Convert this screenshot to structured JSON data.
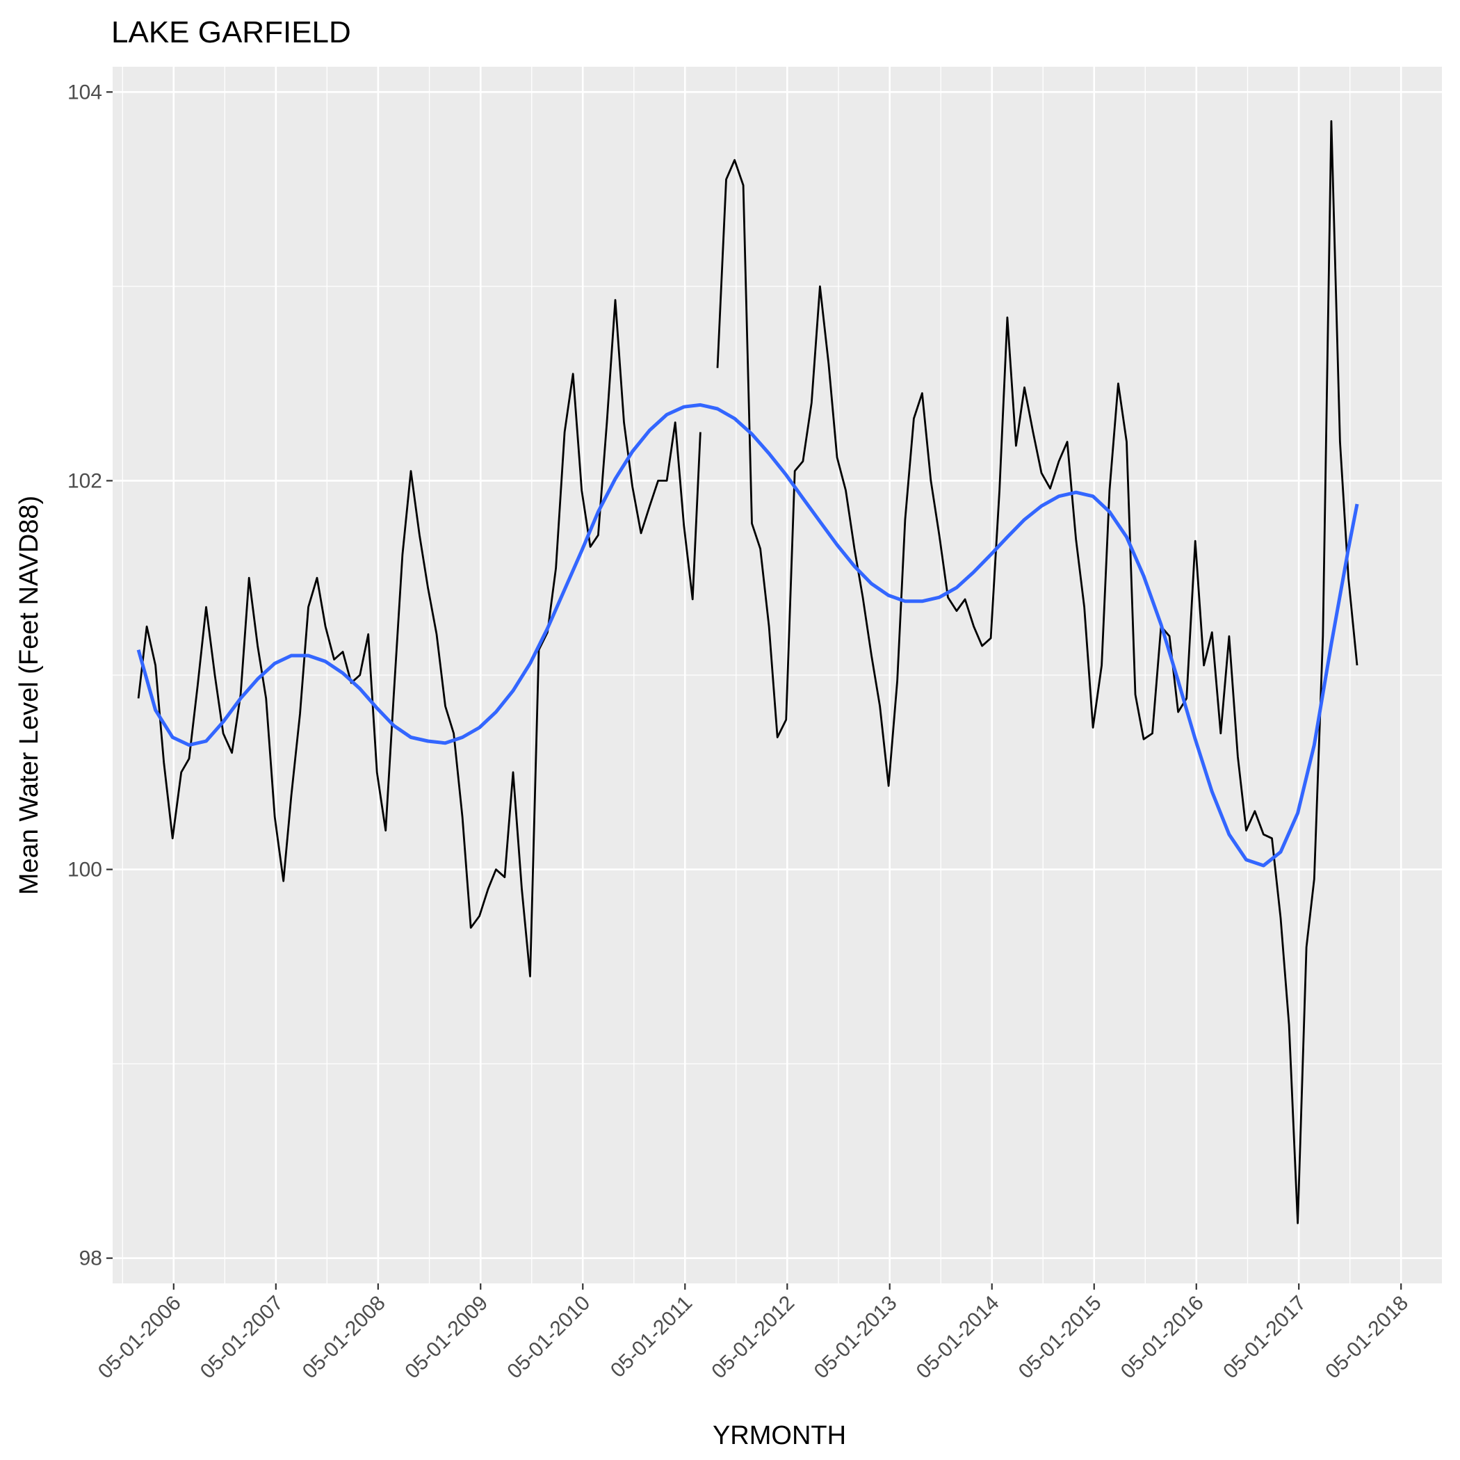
{
  "chart_data": {
    "type": "line",
    "title": "LAKE GARFIELD",
    "xlabel": "YRMONTH",
    "ylabel": "Mean Water Level (Feet NAVD88)",
    "x_axis": {
      "type": "date",
      "range": [
        "2005-06-01",
        "2018-05-31"
      ],
      "ticks": [
        {
          "date": "2006-01-05",
          "label": "05-01-2006"
        },
        {
          "date": "2007-01-05",
          "label": "05-01-2007"
        },
        {
          "date": "2008-01-05",
          "label": "05-01-2008"
        },
        {
          "date": "2009-01-05",
          "label": "05-01-2009"
        },
        {
          "date": "2010-01-05",
          "label": "05-01-2010"
        },
        {
          "date": "2011-01-05",
          "label": "05-01-2011"
        },
        {
          "date": "2012-01-05",
          "label": "05-01-2012"
        },
        {
          "date": "2013-01-05",
          "label": "05-01-2013"
        },
        {
          "date": "2014-01-05",
          "label": "05-01-2014"
        },
        {
          "date": "2015-01-05",
          "label": "05-01-2015"
        },
        {
          "date": "2016-01-05",
          "label": "05-01-2016"
        },
        {
          "date": "2017-01-05",
          "label": "05-01-2017"
        },
        {
          "date": "2018-01-05",
          "label": "05-01-2018"
        }
      ]
    },
    "y_axis": {
      "range": [
        97.87,
        104.13
      ],
      "ticks": [
        98,
        100,
        102,
        104
      ]
    },
    "grid": true,
    "colors": {
      "panel": "#ebebeb",
      "grid": "#ffffff",
      "series": "#000000",
      "smooth": "#3366ff",
      "tick_text": "#4d4d4d"
    },
    "series": [
      {
        "kind": "observed",
        "color": "#000000",
        "points": [
          [
            "2005-09-01",
            100.88
          ],
          [
            "2005-10-01",
            101.25
          ],
          [
            "2005-11-01",
            101.05
          ],
          [
            "2005-12-01",
            100.55
          ],
          [
            "2006-01-01",
            100.16
          ],
          [
            "2006-02-01",
            100.5
          ],
          [
            "2006-03-01",
            100.57
          ],
          [
            "2006-04-01",
            100.95
          ],
          [
            "2006-05-01",
            101.35
          ],
          [
            "2006-06-01",
            101.0
          ],
          [
            "2006-07-01",
            100.7
          ],
          [
            "2006-08-01",
            100.6
          ],
          [
            "2006-09-01",
            100.9
          ],
          [
            "2006-10-01",
            101.5
          ],
          [
            "2006-11-01",
            101.15
          ],
          [
            "2006-12-01",
            100.88
          ],
          [
            "2007-01-01",
            100.27
          ],
          [
            "2007-02-01",
            99.94
          ],
          [
            "2007-03-01",
            100.38
          ],
          [
            "2007-04-01",
            100.8
          ],
          [
            "2007-05-01",
            101.35
          ],
          [
            "2007-06-01",
            101.5
          ],
          [
            "2007-07-01",
            101.25
          ],
          [
            "2007-08-01",
            101.08
          ],
          [
            "2007-09-01",
            101.12
          ],
          [
            "2007-10-01",
            100.96
          ],
          [
            "2007-11-01",
            101.0
          ],
          [
            "2007-12-01",
            101.21
          ],
          [
            "2008-01-01",
            100.5
          ],
          [
            "2008-02-01",
            100.2
          ],
          [
            "2008-03-01",
            100.9
          ],
          [
            "2008-04-01",
            101.62
          ],
          [
            "2008-05-01",
            102.05
          ],
          [
            "2008-06-01",
            101.72
          ],
          [
            "2008-07-01",
            101.45
          ],
          [
            "2008-08-01",
            101.21
          ],
          [
            "2008-09-01",
            100.84
          ],
          [
            "2008-10-01",
            100.7
          ],
          [
            "2008-11-01",
            100.27
          ],
          [
            "2008-12-01",
            99.7
          ],
          [
            "2009-01-01",
            99.76
          ],
          [
            "2009-02-01",
            99.9
          ],
          [
            "2009-03-01",
            100.0
          ],
          [
            "2009-04-01",
            99.96
          ],
          [
            "2009-05-01",
            100.5
          ],
          [
            "2009-06-01",
            99.9
          ],
          [
            "2009-07-01",
            99.45
          ],
          [
            "2009-08-01",
            101.13
          ],
          [
            "2009-09-01",
            101.22
          ],
          [
            "2009-10-01",
            101.55
          ],
          [
            "2009-11-01",
            102.25
          ],
          [
            "2009-12-01",
            102.55
          ],
          [
            "2010-01-01",
            101.95
          ],
          [
            "2010-02-01",
            101.66
          ],
          [
            "2010-03-01",
            101.72
          ],
          [
            "2010-04-01",
            102.3
          ],
          [
            "2010-05-01",
            102.93
          ],
          [
            "2010-06-01",
            102.3
          ],
          [
            "2010-07-01",
            101.97
          ],
          [
            "2010-08-01",
            101.73
          ],
          [
            "2010-09-01",
            101.87
          ],
          [
            "2010-10-01",
            102.0
          ],
          [
            "2010-11-01",
            102.0
          ],
          [
            "2010-12-01",
            102.3
          ],
          [
            "2011-01-01",
            101.77
          ],
          [
            "2011-02-01",
            101.39
          ],
          [
            "2011-03-01",
            102.25
          ],
          null,
          [
            "2011-05-01",
            102.58
          ],
          [
            "2011-06-01",
            103.55
          ],
          [
            "2011-07-01",
            103.65
          ],
          [
            "2011-08-01",
            103.52
          ],
          [
            "2011-09-01",
            101.78
          ],
          [
            "2011-10-01",
            101.65
          ],
          [
            "2011-11-01",
            101.25
          ],
          [
            "2011-12-01",
            100.68
          ],
          [
            "2012-01-01",
            100.77
          ],
          [
            "2012-02-01",
            102.05
          ],
          [
            "2012-03-01",
            102.1
          ],
          [
            "2012-04-01",
            102.4
          ],
          [
            "2012-05-01",
            103.0
          ],
          [
            "2012-06-01",
            102.6
          ],
          [
            "2012-07-01",
            102.12
          ],
          [
            "2012-08-01",
            101.95
          ],
          [
            "2012-09-01",
            101.65
          ],
          [
            "2012-10-01",
            101.4
          ],
          [
            "2012-11-01",
            101.1
          ],
          [
            "2012-12-01",
            100.84
          ],
          [
            "2013-01-01",
            100.43
          ],
          [
            "2013-02-01",
            100.97
          ],
          [
            "2013-03-01",
            101.8
          ],
          [
            "2013-04-01",
            102.32
          ],
          [
            "2013-05-01",
            102.45
          ],
          [
            "2013-06-01",
            102.0
          ],
          [
            "2013-07-01",
            101.72
          ],
          [
            "2013-08-01",
            101.4
          ],
          [
            "2013-09-01",
            101.33
          ],
          [
            "2013-10-01",
            101.39
          ],
          [
            "2013-11-01",
            101.25
          ],
          [
            "2013-12-01",
            101.15
          ],
          [
            "2014-01-01",
            101.19
          ],
          [
            "2014-02-01",
            101.95
          ],
          [
            "2014-03-01",
            102.84
          ],
          [
            "2014-04-01",
            102.18
          ],
          [
            "2014-05-01",
            102.48
          ],
          [
            "2014-06-01",
            102.25
          ],
          [
            "2014-07-01",
            102.04
          ],
          [
            "2014-08-01",
            101.96
          ],
          [
            "2014-09-01",
            102.1
          ],
          [
            "2014-10-01",
            102.2
          ],
          [
            "2014-11-01",
            101.7
          ],
          [
            "2014-12-01",
            101.35
          ],
          [
            "2015-01-01",
            100.73
          ],
          [
            "2015-02-01",
            101.05
          ],
          [
            "2015-03-01",
            101.95
          ],
          [
            "2015-04-01",
            102.5
          ],
          [
            "2015-05-01",
            102.2
          ],
          [
            "2015-06-01",
            100.9
          ],
          [
            "2015-07-01",
            100.67
          ],
          [
            "2015-08-01",
            100.7
          ],
          [
            "2015-09-01",
            101.25
          ],
          [
            "2015-10-01",
            101.2
          ],
          [
            "2015-11-01",
            100.81
          ],
          [
            "2015-12-01",
            100.88
          ],
          [
            "2016-01-01",
            101.69
          ],
          [
            "2016-02-01",
            101.05
          ],
          [
            "2016-03-01",
            101.22
          ],
          [
            "2016-04-01",
            100.7
          ],
          [
            "2016-05-01",
            101.2
          ],
          [
            "2016-06-01",
            100.58
          ],
          [
            "2016-07-01",
            100.2
          ],
          [
            "2016-08-01",
            100.3
          ],
          [
            "2016-09-01",
            100.18
          ],
          [
            "2016-10-01",
            100.16
          ],
          [
            "2016-11-01",
            99.75
          ],
          [
            "2016-12-01",
            99.2
          ],
          [
            "2017-01-01",
            98.18
          ],
          [
            "2017-02-01",
            99.6
          ],
          [
            "2017-03-01",
            99.95
          ],
          [
            "2017-04-01",
            101.2
          ],
          [
            "2017-05-01",
            103.85
          ],
          [
            "2017-06-01",
            102.2
          ],
          [
            "2017-07-01",
            101.5
          ],
          [
            "2017-08-01",
            101.05
          ]
        ]
      },
      {
        "kind": "smooth",
        "color": "#3366ff",
        "points": [
          [
            "2005-09-01",
            101.13
          ],
          [
            "2005-11-01",
            100.82
          ],
          [
            "2006-01-01",
            100.68
          ],
          [
            "2006-03-01",
            100.64
          ],
          [
            "2006-05-01",
            100.66
          ],
          [
            "2006-07-01",
            100.76
          ],
          [
            "2006-09-01",
            100.88
          ],
          [
            "2006-11-01",
            100.98
          ],
          [
            "2007-01-01",
            101.06
          ],
          [
            "2007-03-01",
            101.1
          ],
          [
            "2007-05-01",
            101.1
          ],
          [
            "2007-07-01",
            101.07
          ],
          [
            "2007-09-01",
            101.01
          ],
          [
            "2007-11-01",
            100.93
          ],
          [
            "2008-01-01",
            100.83
          ],
          [
            "2008-03-01",
            100.74
          ],
          [
            "2008-05-01",
            100.68
          ],
          [
            "2008-07-01",
            100.66
          ],
          [
            "2008-09-01",
            100.65
          ],
          [
            "2008-11-01",
            100.68
          ],
          [
            "2009-01-01",
            100.73
          ],
          [
            "2009-03-01",
            100.81
          ],
          [
            "2009-05-01",
            100.92
          ],
          [
            "2009-07-01",
            101.06
          ],
          [
            "2009-09-01",
            101.24
          ],
          [
            "2009-11-01",
            101.44
          ],
          [
            "2010-01-01",
            101.64
          ],
          [
            "2010-03-01",
            101.84
          ],
          [
            "2010-05-01",
            102.01
          ],
          [
            "2010-07-01",
            102.15
          ],
          [
            "2010-09-01",
            102.26
          ],
          [
            "2010-11-01",
            102.34
          ],
          [
            "2011-01-01",
            102.38
          ],
          [
            "2011-03-01",
            102.39
          ],
          [
            "2011-05-01",
            102.37
          ],
          [
            "2011-07-01",
            102.32
          ],
          [
            "2011-09-01",
            102.24
          ],
          [
            "2011-11-01",
            102.14
          ],
          [
            "2012-01-01",
            102.03
          ],
          [
            "2012-03-01",
            101.91
          ],
          [
            "2012-05-01",
            101.79
          ],
          [
            "2012-07-01",
            101.67
          ],
          [
            "2012-09-01",
            101.56
          ],
          [
            "2012-11-01",
            101.47
          ],
          [
            "2013-01-01",
            101.41
          ],
          [
            "2013-03-01",
            101.38
          ],
          [
            "2013-05-01",
            101.38
          ],
          [
            "2013-07-01",
            101.4
          ],
          [
            "2013-09-01",
            101.45
          ],
          [
            "2013-11-01",
            101.53
          ],
          [
            "2014-01-01",
            101.62
          ],
          [
            "2014-03-01",
            101.71
          ],
          [
            "2014-05-01",
            101.8
          ],
          [
            "2014-07-01",
            101.87
          ],
          [
            "2014-09-01",
            101.92
          ],
          [
            "2014-11-01",
            101.94
          ],
          [
            "2015-01-01",
            101.92
          ],
          [
            "2015-03-01",
            101.84
          ],
          [
            "2015-05-01",
            101.71
          ],
          [
            "2015-07-01",
            101.51
          ],
          [
            "2015-09-01",
            101.26
          ],
          [
            "2015-11-01",
            100.97
          ],
          [
            "2016-01-01",
            100.67
          ],
          [
            "2016-03-01",
            100.4
          ],
          [
            "2016-05-01",
            100.18
          ],
          [
            "2016-07-01",
            100.05
          ],
          [
            "2016-09-01",
            100.02
          ],
          [
            "2016-11-01",
            100.09
          ],
          [
            "2017-01-01",
            100.29
          ],
          [
            "2017-03-01",
            100.64
          ],
          [
            "2017-05-01",
            101.16
          ],
          [
            "2017-07-01",
            101.65
          ],
          [
            "2017-08-01",
            101.88
          ]
        ]
      }
    ]
  }
}
